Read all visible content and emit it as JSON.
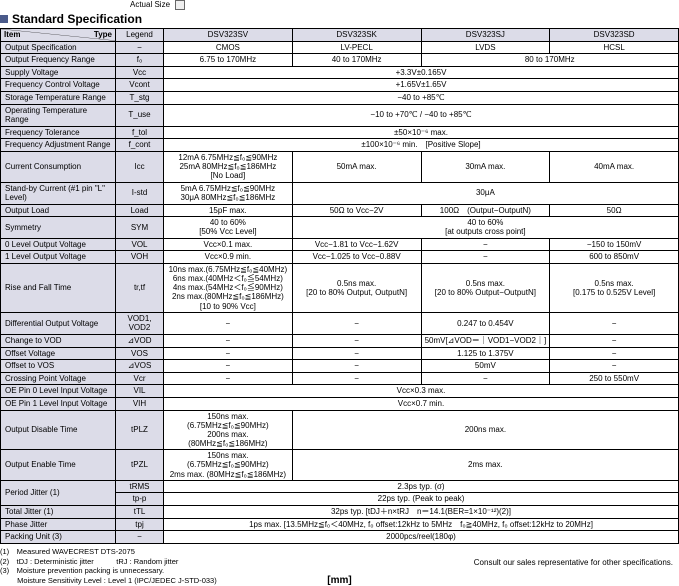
{
  "actualSize": "Actual Size",
  "title": "Standard Specification",
  "headers": {
    "item": "Item",
    "type": "Type",
    "legend": "Legend",
    "cols": [
      "DSV323SV",
      "DSV323SK",
      "DSV323SJ",
      "DSV323SD"
    ]
  },
  "rows": [
    {
      "label": "Output Specification",
      "legend": "−",
      "c": [
        "CMOS",
        "LV-PECL",
        "LVDS",
        "HCSL"
      ]
    },
    {
      "label": "Output Frequency Range",
      "legend": "f₀",
      "c": [
        "6.75 to 170MHz",
        "40 to 170MHz",
        {
          "span": 2,
          "text": "80 to 170MHz"
        }
      ]
    },
    {
      "label": "Supply Voltage",
      "legend": "Vcc",
      "c": [
        {
          "span": 4,
          "text": "+3.3V±0.165V"
        }
      ]
    },
    {
      "label": "Frequency Control Voltage",
      "legend": "Vcont",
      "c": [
        {
          "span": 4,
          "text": "+1.65V±1.65V"
        }
      ]
    },
    {
      "label": "Storage Temperature Range",
      "legend": "T_stg",
      "c": [
        {
          "span": 4,
          "text": "−40 to +85℃"
        }
      ]
    },
    {
      "label": "Operating Temperature Range",
      "legend": "T_use",
      "c": [
        {
          "span": 4,
          "text": "−10 to +70℃ / −40 to +85℃"
        }
      ]
    },
    {
      "label": "Frequency Tolerance",
      "legend": "f_tol",
      "c": [
        {
          "span": 4,
          "text": "±50×10⁻⁶ max."
        }
      ]
    },
    {
      "label": "Frequency Adjustment Range",
      "legend": "f_cont",
      "c": [
        {
          "span": 4,
          "text": "±100×10⁻⁶ min.　[Positive Slope]"
        }
      ]
    },
    {
      "label": "Current Consumption",
      "legend": "Icc",
      "c": [
        "12mA 6.75MHz≦f₀≦90MHz\n25mA 80MHz≦f₀≦186MHz\n[No Load]",
        "50mA max.",
        "30mA max.",
        "40mA max."
      ]
    },
    {
      "label": "Stand-by Current (#1 pin \"L\" Level)",
      "legend": "I-std",
      "c": [
        "5mA 6.75MHz≦f₀≦90MHz\n30μA 80MHz≦f₀≦186MHz",
        {
          "span": 3,
          "text": "30μA"
        }
      ]
    },
    {
      "label": "Output Load",
      "legend": "Load",
      "c": [
        "15pF max.",
        "50Ω to Vcc−2V",
        "100Ω　(Output−OutputN)",
        "50Ω"
      ]
    },
    {
      "label": "Symmetry",
      "legend": "SYM",
      "c": [
        "40 to 60%\n[50% Vcc Level]",
        {
          "span": 3,
          "text": "40 to 60%\n[at outputs cross point]"
        }
      ]
    },
    {
      "label": "0 Level Output Voltage",
      "legend": "VOL",
      "c": [
        "Vcc×0.1 max.",
        "Vcc−1.81 to Vcc−1.62V",
        "−",
        "−150 to 150mV"
      ]
    },
    {
      "label": "1 Level Output Voltage",
      "legend": "VOH",
      "c": [
        "Vcc×0.9 min.",
        "Vcc−1.025 to Vcc−0.88V",
        "−",
        "600 to 850mV"
      ]
    },
    {
      "label": "Rise and Fall Time",
      "legend": "tr,tf",
      "c": [
        "10ns max.(6.75MHz≦f₀≦40MHz)\n6ns max.(40MHz＜f₀≦54MHz)\n4ns max.(54MHz＜f₀≦90MHz)\n2ns max.(80MHz≦f₀≦186MHz)\n[10 to 90% Vcc]",
        "0.5ns max.\n[20 to 80% Output, OutputN]",
        "0.5ns max.\n[20 to 80% Output−OutputN]",
        "0.5ns max.\n[0.175 to 0.525V Level]"
      ]
    },
    {
      "label": "Differential Output Voltage",
      "legend": "VOD1, VOD2",
      "c": [
        "−",
        "−",
        "0.247 to 0.454V",
        "−"
      ]
    },
    {
      "label": "Change to VOD",
      "legend": "⊿VOD",
      "c": [
        "−",
        "−",
        "50mV[⊿VOD＝｜VOD1−VOD2｜]",
        "−"
      ]
    },
    {
      "label": "Offset Voltage",
      "legend": "VOS",
      "c": [
        "−",
        "−",
        "1.125 to 1.375V",
        "−"
      ]
    },
    {
      "label": "Offset to VOS",
      "legend": "⊿VOS",
      "c": [
        "−",
        "−",
        "50mV",
        "−"
      ]
    },
    {
      "label": "Crossing Point Voltage",
      "legend": "Vcr",
      "c": [
        "−",
        "−",
        "−",
        "250 to 550mV"
      ]
    },
    {
      "label": "OE Pin 0 Level Input Voltage",
      "legend": "VIL",
      "c": [
        {
          "span": 4,
          "text": "Vcc×0.3 max."
        }
      ]
    },
    {
      "label": "OE Pin 1 Level Input Voltage",
      "legend": "VIH",
      "c": [
        {
          "span": 4,
          "text": "Vcc×0.7 min."
        }
      ]
    },
    {
      "label": "Output Disable Time",
      "legend": "tPLZ",
      "c": [
        "150ns max. (6.75MHz≦f₀≦90MHz)\n200ns max. (80MHz≦f₀≦186MHz)",
        {
          "span": 3,
          "text": "200ns max."
        }
      ]
    },
    {
      "label": "Output Enable Time",
      "legend": "tPZL",
      "c": [
        "150ns max. (6.75MHz≦f₀≦90MHz)\n2ms max. (80MHz≦f₀≦186MHz)",
        {
          "span": 3,
          "text": "2ms max."
        }
      ]
    },
    {
      "label": "Period Jitter (1)",
      "rowspan": 2,
      "legend": "tRMS",
      "c": [
        {
          "span": 4,
          "text": "2.3ps typ. (σ)"
        }
      ]
    },
    {
      "legend": "tp-p",
      "c": [
        {
          "span": 4,
          "text": "22ps typ. (Peak to peak)"
        }
      ]
    },
    {
      "label": "Total Jitter (1)",
      "legend": "tTL",
      "c": [
        {
          "span": 4,
          "text": "32ps typ. [tDJ＋n×tRJ　n＝14.1(BER=1×10⁻¹²)(2)]"
        }
      ]
    },
    {
      "label": "Phase Jitter",
      "legend": "tpj",
      "c": [
        {
          "span": 4,
          "text": "1ps max. [13.5MHz≦f₀＜40MHz, f₀ offset:12kHz to 5MHz　f₀≧40MHz, f₀ offset:12kHz to 20MHz]"
        }
      ]
    },
    {
      "label": "Packing Unit (3)",
      "legend": "−",
      "c": [
        {
          "span": 4,
          "text": "2000pcs/reel(180φ)"
        }
      ]
    }
  ],
  "footnotes": [
    "(1)　Measured WAVECREST DTS-2075",
    "(2)　tDJ : Deterministic jitter　　　tRJ : Random jitter",
    "(3)　Moisture prevention packing is unnecessary.",
    "　　 Moisture Sensitivity Level : Level 1 (IPC/JEDEC J-STD-033)"
  ],
  "consult": "Consult our sales representative for other specifications.",
  "mm": "[mm]",
  "colors": {
    "headerBg": "#dcdce8",
    "accent": "#4a5a8a"
  }
}
